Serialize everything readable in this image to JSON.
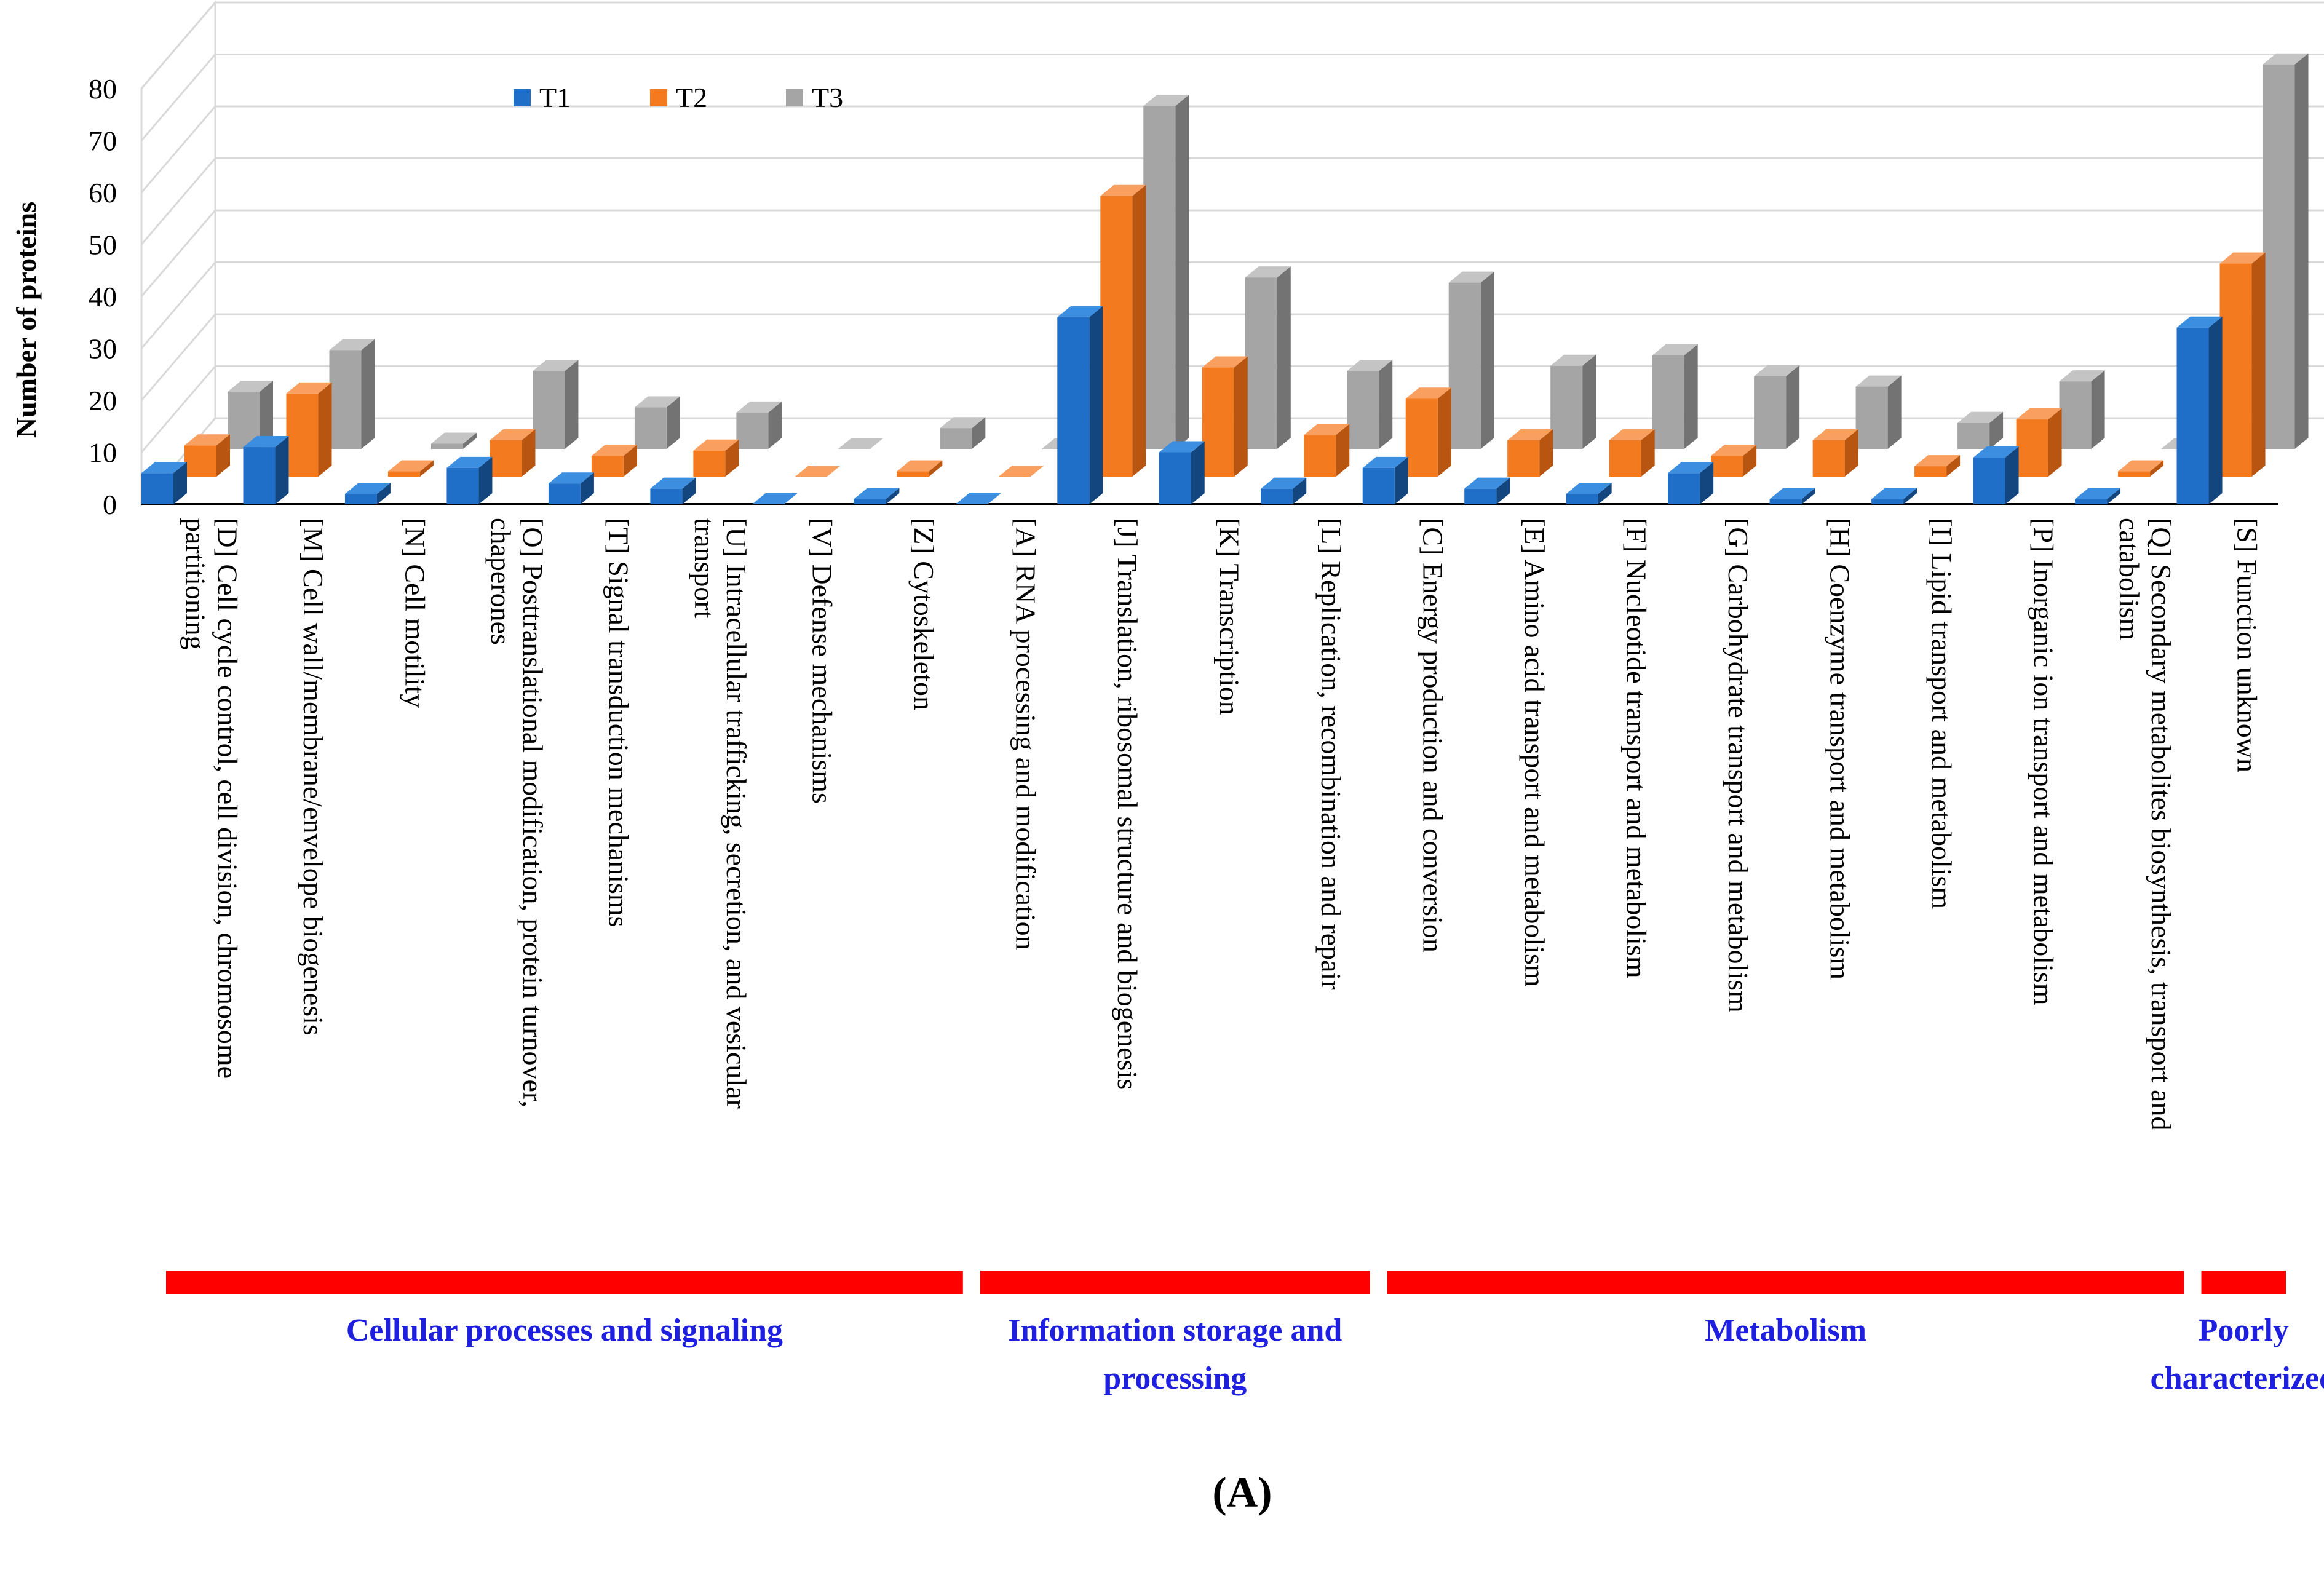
{
  "chart_data": {
    "type": "bar",
    "ylabel": "Number of proteins",
    "ylim": [
      0,
      80
    ],
    "yticks": [
      0,
      10,
      20,
      30,
      40,
      50,
      60,
      70,
      80
    ],
    "grid": true,
    "legend_position": "top-left",
    "panel_label_prefix": "(",
    "panel_label_letter": "A",
    "panel_label_suffix": ")",
    "categories": [
      [
        "[D] Cell cycle control, cell division, chromosome",
        "partitioning"
      ],
      [
        "[M] Cell wall/membrane/envelope biogenesis"
      ],
      [
        "[N] Cell motility"
      ],
      [
        "[O] Posttranslational modification, protein turnover,",
        "chaperones"
      ],
      [
        "[T] Signal transduction mechanisms"
      ],
      [
        "[U] Intracellular trafficking, secretion, and vesicular",
        "transport"
      ],
      [
        "[V] Defense mechanisms"
      ],
      [
        "[Z] Cytoskeleton"
      ],
      [
        "[A] RNA processing and modification"
      ],
      [
        "[J] Translation, ribosomal structure and biogenesis"
      ],
      [
        "[K] Transcription"
      ],
      [
        "[L] Replication, recombination and repair"
      ],
      [
        "[C] Energy production and conversion"
      ],
      [
        "[E] Amino acid transport and metabolism"
      ],
      [
        "[F] Nucleotide transport and metabolism"
      ],
      [
        "[G] Carbohydrate transport and metabolism"
      ],
      [
        "[H] Coenzyme transport and metabolism"
      ],
      [
        "[I] Lipid transport and metabolism"
      ],
      [
        "[P] Inorganic ion transport and metabolism"
      ],
      [
        "[Q] Secondary metabolites biosynthesis, transport and",
        "catabolism"
      ],
      [
        "[S] Function unknown"
      ]
    ],
    "series": [
      {
        "name": "T1",
        "color": "#1f6fc8",
        "side": "#13467f",
        "top": "#3b8ee0",
        "values": [
          6,
          11,
          2,
          7,
          4,
          3,
          0,
          1,
          0,
          36,
          10,
          3,
          7,
          3,
          2,
          6,
          1,
          1,
          9,
          1,
          34
        ]
      },
      {
        "name": "T2",
        "color": "#f47a20",
        "side": "#b85510",
        "top": "#f9a060",
        "values": [
          6,
          16,
          1,
          7,
          4,
          5,
          0,
          1,
          0,
          54,
          21,
          8,
          15,
          7,
          7,
          4,
          7,
          2,
          11,
          1,
          41
        ]
      },
      {
        "name": "T3",
        "color": "#a5a5a5",
        "side": "#737373",
        "top": "#c4c4c4",
        "values": [
          11,
          19,
          1,
          15,
          8,
          7,
          0,
          4,
          0,
          66,
          33,
          15,
          32,
          16,
          18,
          14,
          12,
          5,
          13,
          0,
          74
        ]
      }
    ],
    "groups": [
      {
        "label": [
          "Cellular processes and signaling"
        ],
        "from": 0,
        "to": 7
      },
      {
        "label": [
          "Information storage and",
          "processing"
        ],
        "from": 8,
        "to": 11
      },
      {
        "label": [
          "Metabolism"
        ],
        "from": 12,
        "to": 19
      },
      {
        "label": [
          "Poorly",
          "characterized"
        ],
        "from": 20,
        "to": 20
      }
    ],
    "group_bar_color": "#ff0000"
  }
}
